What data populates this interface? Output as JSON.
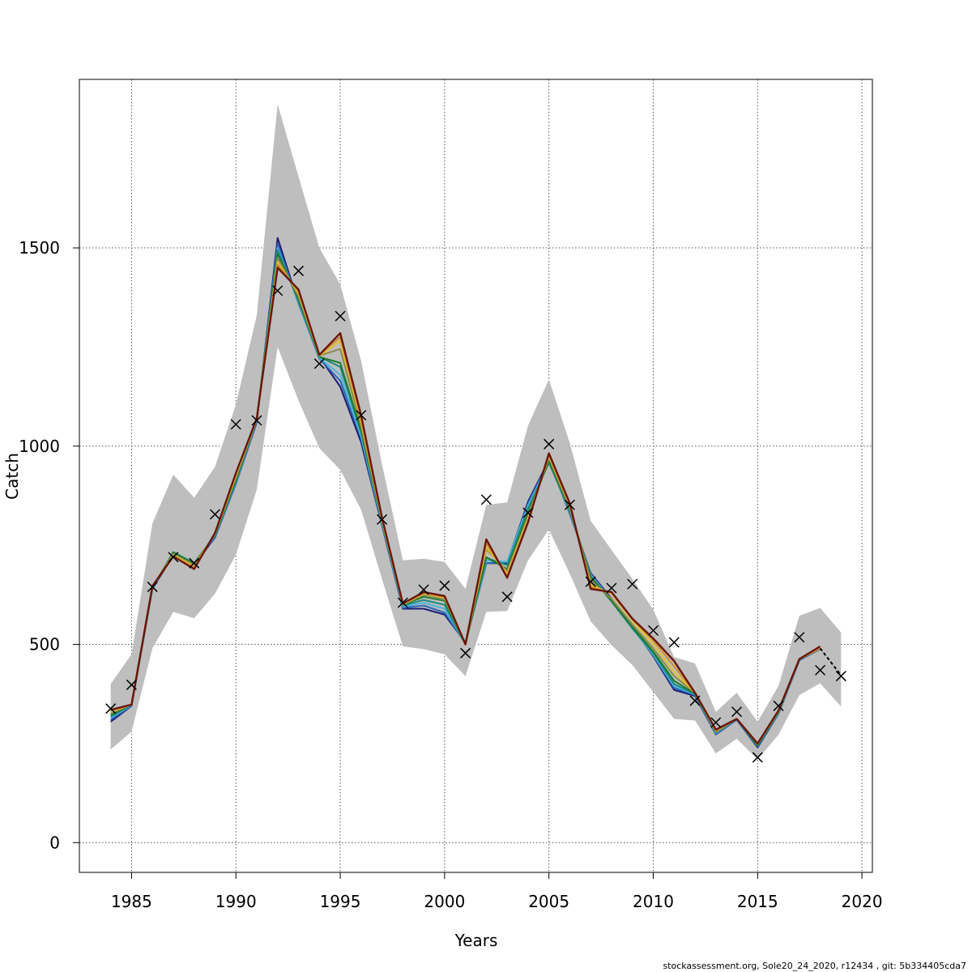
{
  "footer": {
    "note": "stockassessment.org, Sole20_24_2020, r12434 , git: 5b334405cda7"
  },
  "chart_data": {
    "type": "line",
    "title": "",
    "xlabel": "Years",
    "ylabel": "Catch",
    "xlim": [
      1982.5,
      2020.5
    ],
    "ylim": [
      -75,
      1925
    ],
    "xticks": [
      1985,
      1990,
      1995,
      2000,
      2005,
      2010,
      2015,
      2020
    ],
    "xtick_labels": [
      "1985",
      "1990",
      "1995",
      "2000",
      "2005",
      "2010",
      "2015",
      "2020"
    ],
    "yticks": [
      0,
      500,
      1000,
      1500
    ],
    "ytick_labels": [
      "0",
      "500",
      "1000",
      "1500"
    ],
    "grid": true,
    "legend": "none",
    "band_color": "#bebebe",
    "observed_marker": "x",
    "years": [
      1984,
      1985,
      1986,
      1987,
      1988,
      1989,
      1990,
      1991,
      1992,
      1993,
      1994,
      1995,
      1996,
      1997,
      1998,
      1999,
      2000,
      2001,
      2002,
      2003,
      2004,
      2005,
      2006,
      2007,
      2008,
      2009,
      2010,
      2011,
      2012,
      2013,
      2014,
      2015,
      2016,
      2017,
      2018,
      2019
    ],
    "confidence_band": {
      "upper": [
        400,
        475,
        805,
        928,
        870,
        948,
        1105,
        1330,
        1862,
        1680,
        1500,
        1408,
        1215,
        955,
        712,
        716,
        708,
        640,
        852,
        858,
        1052,
        1168,
        1008,
        812,
        738,
        665,
        588,
        468,
        452,
        330,
        378,
        305,
        395,
        572,
        592,
        530
      ],
      "lower": [
        235,
        280,
        490,
        582,
        566,
        628,
        726,
        890,
        1250,
        1115,
        995,
        940,
        840,
        665,
        495,
        488,
        475,
        420,
        582,
        584,
        712,
        790,
        678,
        558,
        498,
        448,
        380,
        312,
        308,
        225,
        262,
        210,
        272,
        372,
        402,
        343
      ]
    },
    "observed": [
      338,
      398,
      645,
      720,
      705,
      828,
      1055,
      1065,
      1392,
      1442,
      1208,
      1328,
      1078,
      815,
      605,
      638,
      648,
      478,
      865,
      620,
      832,
      1005,
      852,
      658,
      642,
      652,
      535,
      505,
      358,
      303,
      330,
      215,
      345,
      518,
      435,
      420
    ],
    "series": [
      {
        "color": "#1c1a72",
        "values": [
          305,
          345,
          640,
          725,
          700,
          770,
          905,
          1060,
          1525,
          1360,
          1225,
          1150,
          1010,
          800,
          590,
          590,
          575,
          505,
          705,
          705,
          860,
          965,
          830,
          680,
          615,
          545,
          470,
          385,
          370,
          273,
          310,
          240,
          325,
          460,
          490,
          null
        ]
      },
      {
        "color": "#2a64b8",
        "values": [
          310,
          345,
          640,
          730,
          702,
          772,
          905,
          1062,
          1510,
          1360,
          1220,
          1165,
          1020,
          802,
          592,
          598,
          580,
          503,
          705,
          708,
          855,
          963,
          832,
          678,
          612,
          543,
          472,
          390,
          372,
          274,
          310,
          242,
          325,
          460,
          488,
          null
        ]
      },
      {
        "color": "#4bb4da",
        "values": [
          315,
          347,
          642,
          732,
          704,
          774,
          908,
          1065,
          1500,
          1362,
          1222,
          1180,
          1025,
          805,
          595,
          605,
          590,
          502,
          712,
          708,
          850,
          960,
          835,
          675,
          610,
          540,
          474,
          395,
          374,
          276,
          312,
          245,
          327,
          462,
          490,
          null
        ]
      },
      {
        "color": "#1a8a7e",
        "values": [
          318,
          348,
          642,
          733,
          705,
          775,
          910,
          1067,
          1495,
          1365,
          1225,
          1200,
          1035,
          808,
          598,
          612,
          600,
          500,
          718,
          700,
          842,
          958,
          838,
          672,
          608,
          540,
          478,
          400,
          375,
          278,
          312,
          244,
          328,
          462,
          490,
          null
        ]
      },
      {
        "color": "#1f7a2a",
        "values": [
          322,
          348,
          644,
          731,
          703,
          777,
          915,
          1068,
          1485,
          1372,
          1225,
          1210,
          1040,
          810,
          600,
          620,
          610,
          500,
          720,
          690,
          830,
          962,
          842,
          670,
          610,
          545,
          482,
          408,
          376,
          279,
          312,
          246,
          330,
          463,
          490,
          null
        ]
      },
      {
        "color": "#8c8a48",
        "values": [
          326,
          348,
          645,
          728,
          700,
          778,
          920,
          1068,
          1475,
          1378,
          1228,
          1245,
          1050,
          812,
          600,
          625,
          615,
          500,
          740,
          685,
          822,
          970,
          845,
          662,
          615,
          550,
          490,
          420,
          378,
          280,
          312,
          248,
          330,
          463,
          490,
          null
        ]
      },
      {
        "color": "#e0c030",
        "values": [
          330,
          348,
          646,
          725,
          697,
          779,
          925,
          1069,
          1465,
          1385,
          1228,
          1265,
          1062,
          815,
          601,
          628,
          618,
          500,
          745,
          678,
          818,
          975,
          850,
          650,
          628,
          560,
          500,
          430,
          378,
          282,
          312,
          250,
          332,
          463,
          490,
          null
        ]
      },
      {
        "color": "#d08a28",
        "values": [
          333,
          348,
          646,
          722,
          694,
          780,
          930,
          1070,
          1458,
          1390,
          1230,
          1275,
          1070,
          818,
          602,
          630,
          620,
          500,
          755,
          672,
          812,
          978,
          852,
          645,
          630,
          563,
          510,
          445,
          378,
          283,
          312,
          250,
          332,
          463,
          490,
          null
        ]
      },
      {
        "color": "#6b1608",
        "values": [
          335,
          348,
          647,
          722,
          690,
          781,
          932,
          1070,
          1450,
          1395,
          1230,
          1285,
          1078,
          820,
          603,
          632,
          622,
          500,
          765,
          668,
          808,
          982,
          856,
          640,
          632,
          565,
          515,
          458,
          378,
          285,
          312,
          250,
          333,
          463,
          495,
          null
        ]
      }
    ],
    "projection": {
      "color": "#000000",
      "style": "dashed",
      "years": [
        2018,
        2019
      ],
      "values": [
        490,
        422
      ]
    }
  }
}
